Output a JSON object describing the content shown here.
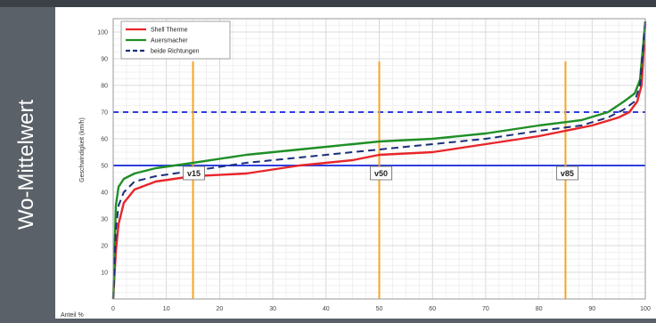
{
  "slide": {
    "side_title": "Wo-Mittelwert"
  },
  "colors": {
    "background": "#5b6168",
    "grid": "#d9d9d9",
    "marker": "#f5a623",
    "threshold_solid": "#2f3ee0",
    "threshold_dashed": "#2f3ee0"
  },
  "chart_data": {
    "type": "line",
    "title": "",
    "xlabel": "Anteil %",
    "ylabel": "Geschwindigkeit (km/h)",
    "xlim": [
      0,
      100
    ],
    "ylim": [
      0,
      105
    ],
    "x_ticks": [
      0,
      10,
      20,
      30,
      40,
      50,
      60,
      70,
      80,
      90,
      100
    ],
    "y_ticks": [
      10,
      20,
      30,
      40,
      50,
      60,
      70,
      80,
      90,
      100
    ],
    "grid": true,
    "legend_position": "top-left",
    "series": [
      {
        "name": "Shell Therme",
        "color": "#e8262a",
        "dash": "",
        "points": [
          [
            0,
            0
          ],
          [
            0.5,
            18
          ],
          [
            1,
            28
          ],
          [
            2,
            36
          ],
          [
            4,
            41
          ],
          [
            8,
            44
          ],
          [
            15,
            46
          ],
          [
            25,
            47
          ],
          [
            35,
            50
          ],
          [
            45,
            52
          ],
          [
            50,
            54
          ],
          [
            60,
            55
          ],
          [
            70,
            58
          ],
          [
            80,
            61
          ],
          [
            90,
            65
          ],
          [
            95,
            68
          ],
          [
            97,
            70
          ],
          [
            98.5,
            74
          ],
          [
            99.3,
            80
          ],
          [
            100,
            103
          ]
        ]
      },
      {
        "name": "Auersmacher",
        "color": "#1f8f26",
        "dash": "",
        "points": [
          [
            0,
            0
          ],
          [
            0.5,
            35
          ],
          [
            1,
            42
          ],
          [
            2,
            45
          ],
          [
            4,
            47
          ],
          [
            8,
            49
          ],
          [
            15,
            51
          ],
          [
            25,
            54
          ],
          [
            35,
            56
          ],
          [
            45,
            58
          ],
          [
            50,
            59
          ],
          [
            60,
            60
          ],
          [
            70,
            62
          ],
          [
            80,
            65
          ],
          [
            88,
            67
          ],
          [
            93,
            70
          ],
          [
            96,
            74
          ],
          [
            98,
            77
          ],
          [
            99,
            82
          ],
          [
            100,
            104
          ]
        ]
      },
      {
        "name": "beide Richtungen",
        "color": "#1a2f7a",
        "dash": "8 5",
        "points": [
          [
            0,
            0
          ],
          [
            0.5,
            26
          ],
          [
            1,
            35
          ],
          [
            2,
            40
          ],
          [
            4,
            44
          ],
          [
            8,
            46
          ],
          [
            15,
            48
          ],
          [
            25,
            51
          ],
          [
            35,
            53
          ],
          [
            45,
            55
          ],
          [
            50,
            56
          ],
          [
            60,
            58
          ],
          [
            70,
            60
          ],
          [
            80,
            63
          ],
          [
            88,
            65
          ],
          [
            93,
            68
          ],
          [
            96,
            71
          ],
          [
            98,
            74
          ],
          [
            99,
            80
          ],
          [
            100,
            104
          ]
        ]
      }
    ],
    "reference_lines": {
      "horizontal": [
        {
          "y": 50,
          "style": "solid"
        },
        {
          "y": 70,
          "style": "dashed"
        }
      ],
      "vertical": [
        {
          "x": 15,
          "label": "v15"
        },
        {
          "x": 50,
          "label": "v50"
        },
        {
          "x": 85,
          "label": "v85"
        }
      ]
    }
  }
}
